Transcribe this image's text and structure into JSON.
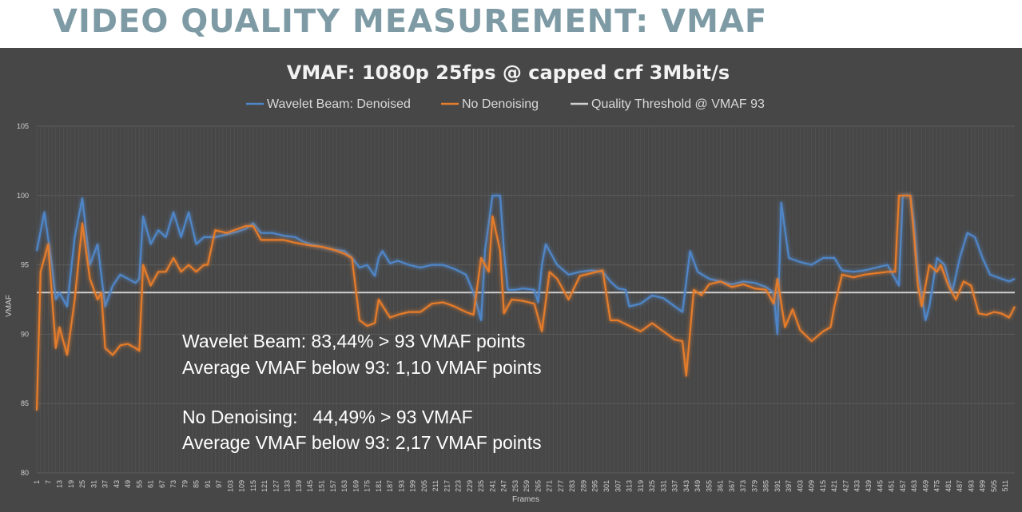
{
  "slide": {
    "title": "VIDEO QUALITY MEASUREMENT: VMAF"
  },
  "chart_data": {
    "type": "line",
    "title": "VMAF: 1080p 25fps @ capped crf 3Mbit/s",
    "xlabel": "Frames",
    "ylabel": "VMAF",
    "ylim": [
      80,
      105
    ],
    "xlim": [
      1,
      516
    ],
    "yticks": [
      80,
      85,
      90,
      95,
      100,
      105
    ],
    "xtick_start": 1,
    "xtick_step": 6,
    "grid": true,
    "legend_position": "top",
    "series": [
      {
        "name": "Wavelet Beam: Denoised",
        "color": "#4f86c8",
        "points": [
          [
            1,
            96
          ],
          [
            5,
            98.8
          ],
          [
            9,
            95
          ],
          [
            11,
            92.5
          ],
          [
            13,
            93
          ],
          [
            17,
            92
          ],
          [
            21,
            97
          ],
          [
            25,
            99.8
          ],
          [
            29,
            95
          ],
          [
            33,
            96.5
          ],
          [
            37,
            92
          ],
          [
            41,
            93.5
          ],
          [
            45,
            94.3
          ],
          [
            49,
            94
          ],
          [
            53,
            93.7
          ],
          [
            55,
            94
          ],
          [
            57,
            98.5
          ],
          [
            61,
            96.5
          ],
          [
            65,
            97.5
          ],
          [
            69,
            97
          ],
          [
            73,
            98.8
          ],
          [
            77,
            97
          ],
          [
            81,
            98.8
          ],
          [
            85,
            96.5
          ],
          [
            89,
            97
          ],
          [
            95,
            97
          ],
          [
            101,
            97.2
          ],
          [
            107,
            97.4
          ],
          [
            111,
            97.6
          ],
          [
            115,
            98
          ],
          [
            119,
            97.3
          ],
          [
            125,
            97.3
          ],
          [
            131,
            97.1
          ],
          [
            137,
            97
          ],
          [
            141,
            96.7
          ],
          [
            145,
            96.5
          ],
          [
            151,
            96.3
          ],
          [
            157,
            96.1
          ],
          [
            163,
            96
          ],
          [
            167,
            95.5
          ],
          [
            171,
            94.8
          ],
          [
            175,
            95
          ],
          [
            179,
            94.2
          ],
          [
            181,
            95.5
          ],
          [
            183,
            96
          ],
          [
            187,
            95.1
          ],
          [
            191,
            95.3
          ],
          [
            197,
            95
          ],
          [
            203,
            94.8
          ],
          [
            209,
            95
          ],
          [
            215,
            95
          ],
          [
            221,
            94.7
          ],
          [
            227,
            94.3
          ],
          [
            231,
            93
          ],
          [
            235,
            91
          ],
          [
            237,
            96
          ],
          [
            241,
            100
          ],
          [
            245,
            100
          ],
          [
            247,
            96
          ],
          [
            249,
            93.2
          ],
          [
            253,
            93.2
          ],
          [
            257,
            93.3
          ],
          [
            263,
            93.2
          ],
          [
            265,
            92.3
          ],
          [
            267,
            95
          ],
          [
            269,
            96.5
          ],
          [
            275,
            95
          ],
          [
            281,
            94.3
          ],
          [
            287,
            94.5
          ],
          [
            293,
            94.6
          ],
          [
            299,
            94.5
          ],
          [
            303,
            93.8
          ],
          [
            307,
            93.3
          ],
          [
            311,
            93.2
          ],
          [
            313,
            92
          ],
          [
            319,
            92.2
          ],
          [
            325,
            92.8
          ],
          [
            331,
            92.6
          ],
          [
            337,
            92
          ],
          [
            341,
            91.6
          ],
          [
            345,
            96
          ],
          [
            349,
            94.5
          ],
          [
            355,
            94
          ],
          [
            361,
            93.8
          ],
          [
            367,
            93.6
          ],
          [
            373,
            93.8
          ],
          [
            379,
            93.7
          ],
          [
            385,
            93.4
          ],
          [
            389,
            93
          ],
          [
            391,
            90
          ],
          [
            393,
            99.5
          ],
          [
            397,
            95.5
          ],
          [
            403,
            95.2
          ],
          [
            409,
            95
          ],
          [
            415,
            95.5
          ],
          [
            421,
            95.5
          ],
          [
            425,
            94.6
          ],
          [
            431,
            94.5
          ],
          [
            437,
            94.6
          ],
          [
            443,
            94.8
          ],
          [
            449,
            95
          ],
          [
            455,
            93.5
          ],
          [
            457,
            100
          ],
          [
            461,
            100
          ],
          [
            463,
            98
          ],
          [
            465,
            94.5
          ],
          [
            469,
            91
          ],
          [
            471,
            92
          ],
          [
            475,
            95.5
          ],
          [
            479,
            95
          ],
          [
            483,
            93
          ],
          [
            487,
            95.5
          ],
          [
            491,
            97.3
          ],
          [
            495,
            97
          ],
          [
            499,
            95.5
          ],
          [
            503,
            94.3
          ],
          [
            509,
            94
          ],
          [
            513,
            93.8
          ],
          [
            516,
            94
          ]
        ]
      },
      {
        "name": "No Denoising",
        "color": "#e57c2b",
        "points": [
          [
            1,
            84.5
          ],
          [
            3,
            94.5
          ],
          [
            7,
            96.5
          ],
          [
            11,
            89
          ],
          [
            13,
            90.5
          ],
          [
            17,
            88.5
          ],
          [
            19,
            90.5
          ],
          [
            21,
            92.5
          ],
          [
            25,
            98
          ],
          [
            29,
            94
          ],
          [
            33,
            92.5
          ],
          [
            35,
            93
          ],
          [
            37,
            89
          ],
          [
            41,
            88.5
          ],
          [
            45,
            89.2
          ],
          [
            49,
            89.3
          ],
          [
            53,
            89
          ],
          [
            55,
            88.8
          ],
          [
            57,
            95
          ],
          [
            61,
            93.5
          ],
          [
            65,
            94.5
          ],
          [
            69,
            94.5
          ],
          [
            73,
            95.5
          ],
          [
            77,
            94.5
          ],
          [
            81,
            95
          ],
          [
            85,
            94.5
          ],
          [
            89,
            95
          ],
          [
            91,
            95
          ],
          [
            95,
            97.5
          ],
          [
            101,
            97.3
          ],
          [
            107,
            97.6
          ],
          [
            111,
            97.8
          ],
          [
            115,
            97.8
          ],
          [
            119,
            96.8
          ],
          [
            125,
            96.8
          ],
          [
            131,
            96.8
          ],
          [
            137,
            96.6
          ],
          [
            141,
            96.5
          ],
          [
            145,
            96.4
          ],
          [
            151,
            96.3
          ],
          [
            157,
            96.1
          ],
          [
            163,
            95.8
          ],
          [
            167,
            95.5
          ],
          [
            171,
            91
          ],
          [
            175,
            90.6
          ],
          [
            179,
            90.8
          ],
          [
            181,
            92.5
          ],
          [
            187,
            91.2
          ],
          [
            191,
            91.4
          ],
          [
            197,
            91.6
          ],
          [
            203,
            91.6
          ],
          [
            209,
            92.2
          ],
          [
            215,
            92.3
          ],
          [
            221,
            92
          ],
          [
            227,
            91.6
          ],
          [
            231,
            91.4
          ],
          [
            235,
            95.5
          ],
          [
            239,
            94.5
          ],
          [
            241,
            98.5
          ],
          [
            245,
            96
          ],
          [
            247,
            91.5
          ],
          [
            251,
            92.5
          ],
          [
            257,
            92.4
          ],
          [
            263,
            92.2
          ],
          [
            267,
            90.2
          ],
          [
            271,
            94.5
          ],
          [
            275,
            94
          ],
          [
            281,
            92.5
          ],
          [
            287,
            94.2
          ],
          [
            293,
            94.4
          ],
          [
            299,
            94.6
          ],
          [
            303,
            91
          ],
          [
            307,
            91
          ],
          [
            313,
            90.6
          ],
          [
            319,
            90.2
          ],
          [
            325,
            90.8
          ],
          [
            331,
            90.2
          ],
          [
            337,
            89.6
          ],
          [
            341,
            89.5
          ],
          [
            343,
            87
          ],
          [
            347,
            93.2
          ],
          [
            351,
            92.8
          ],
          [
            355,
            93.6
          ],
          [
            361,
            93.8
          ],
          [
            367,
            93.4
          ],
          [
            373,
            93.6
          ],
          [
            379,
            93.3
          ],
          [
            385,
            93.2
          ],
          [
            389,
            92.2
          ],
          [
            391,
            94
          ],
          [
            395,
            90.5
          ],
          [
            399,
            91.8
          ],
          [
            403,
            90.3
          ],
          [
            409,
            89.5
          ],
          [
            415,
            90.2
          ],
          [
            419,
            90.5
          ],
          [
            421,
            92
          ],
          [
            425,
            94.3
          ],
          [
            431,
            94.1
          ],
          [
            437,
            94.3
          ],
          [
            443,
            94.4
          ],
          [
            449,
            94.5
          ],
          [
            453,
            94.5
          ],
          [
            455,
            100
          ],
          [
            461,
            100
          ],
          [
            463,
            97
          ],
          [
            465,
            93.5
          ],
          [
            467,
            92
          ],
          [
            471,
            95
          ],
          [
            475,
            94.5
          ],
          [
            477,
            95
          ],
          [
            481,
            93.5
          ],
          [
            485,
            92.5
          ],
          [
            489,
            93.8
          ],
          [
            493,
            93.5
          ],
          [
            497,
            91.5
          ],
          [
            501,
            91.4
          ],
          [
            505,
            91.6
          ],
          [
            509,
            91.5
          ],
          [
            513,
            91.2
          ],
          [
            516,
            92
          ]
        ]
      },
      {
        "name": "Quality Threshold @ VMAF 93",
        "color": "#d0d0d0",
        "points": [
          [
            1,
            93
          ],
          [
            516,
            93
          ]
        ]
      }
    ],
    "annotations": [
      [
        "Wavelet Beam: 83,44% > 93 VMAF points",
        "Average VMAF below 93: 1,10 VMAF points"
      ],
      [
        "No Denoising:   44,49% > 93 VMAF",
        "Average VMAF below 93: 2,17 VMAF points"
      ]
    ]
  }
}
